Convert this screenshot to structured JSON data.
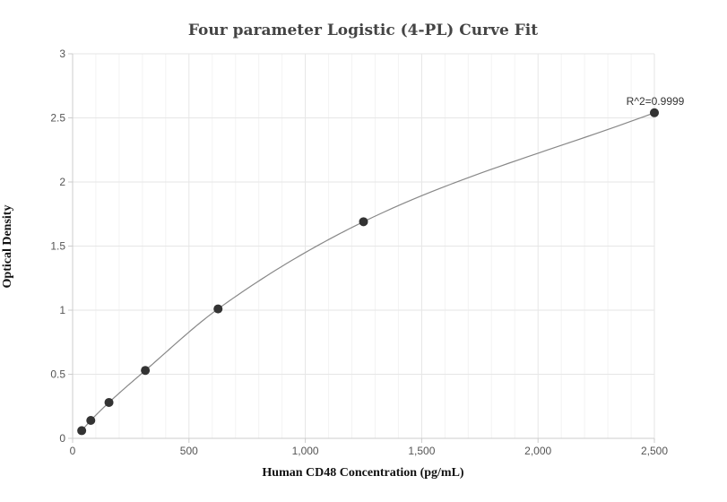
{
  "chart_data": {
    "type": "scatter",
    "title": "Four parameter Logistic (4-PL) Curve Fit",
    "xlabel": "Human CD48 Concentration (pg/mL)",
    "ylabel": "Optical Density",
    "xlim": [
      0,
      2500
    ],
    "ylim": [
      0,
      3
    ],
    "x_ticks": [
      0,
      500,
      1000,
      1500,
      2000,
      2500
    ],
    "x_tick_labels": [
      "0",
      "500",
      "1,000",
      "1,500",
      "2,000",
      "2,500"
    ],
    "y_ticks": [
      0,
      0.5,
      1,
      1.5,
      2,
      2.5,
      3
    ],
    "y_tick_labels": [
      "0",
      "0.5",
      "1",
      "1.5",
      "2",
      "2.5",
      "3"
    ],
    "grid": true,
    "series": [
      {
        "x": [
          39.06,
          78.13,
          156.25,
          312.5,
          625,
          1250,
          2500
        ],
        "y": [
          0.06,
          0.14,
          0.28,
          0.53,
          1.01,
          1.69,
          2.54
        ]
      }
    ],
    "annotations": [
      {
        "text": "R^2=0.9999",
        "x": 2500,
        "y": 2.54
      }
    ],
    "colors": {
      "points": "#333333",
      "curve": "#888888",
      "grid": "#e6e6e6",
      "axis": "#cccccc"
    }
  }
}
